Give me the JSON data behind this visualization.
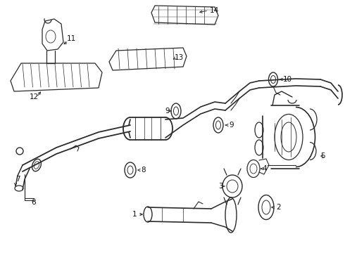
{
  "bg_color": "#ffffff",
  "line_color": "#2a2a2a",
  "label_color": "#111111",
  "fig_width": 4.9,
  "fig_height": 3.6,
  "dpi": 100
}
